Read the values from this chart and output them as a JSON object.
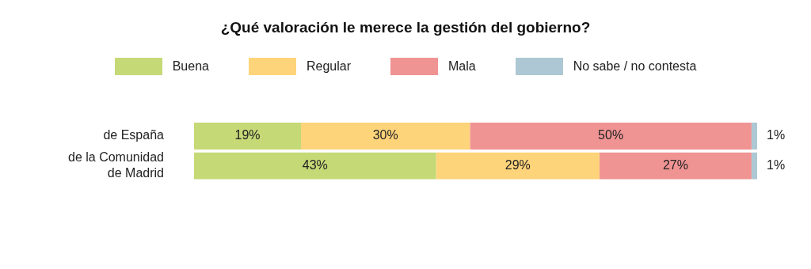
{
  "chart_data": {
    "type": "bar",
    "orientation": "horizontal",
    "stacked": true,
    "title": "¿Qué valoración le merece la gestión del gobierno?",
    "categories": [
      "de España",
      "de la Comunidad de Madrid"
    ],
    "series": [
      {
        "name": "Buena",
        "color": "#c5d977",
        "values": [
          19,
          43
        ],
        "value_labels": [
          "19%",
          "43%"
        ]
      },
      {
        "name": "Regular",
        "color": "#fed47a",
        "values": [
          30,
          29
        ],
        "value_labels": [
          "30%",
          "29%"
        ]
      },
      {
        "name": "Mala",
        "color": "#f09393",
        "values": [
          50,
          27
        ],
        "value_labels": [
          "50%",
          "27%"
        ]
      },
      {
        "name": "No sabe / no contesta",
        "color": "#adc8d4",
        "values": [
          1,
          1
        ],
        "value_labels": [
          "1%",
          "1%"
        ]
      }
    ],
    "legend": "top",
    "grid": false
  }
}
